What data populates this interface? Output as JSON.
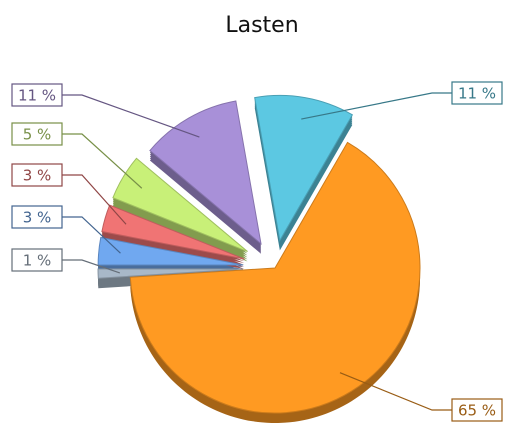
{
  "chart_data": {
    "type": "pie",
    "title": "Lasten",
    "categories": [
      null,
      null,
      null,
      null,
      null,
      null,
      null
    ],
    "values": [
      11,
      65,
      1,
      3,
      3,
      5,
      11
    ],
    "value_labels": [
      "11 %",
      "65 %",
      "1 %",
      "3 %",
      "3 %",
      "5 %",
      "11 %"
    ],
    "colors": [
      "#5cc8e2",
      "#ff9a22",
      "#a8b8c8",
      "#70a8f0",
      "#f07474",
      "#c8f078",
      "#a890d8"
    ]
  }
}
